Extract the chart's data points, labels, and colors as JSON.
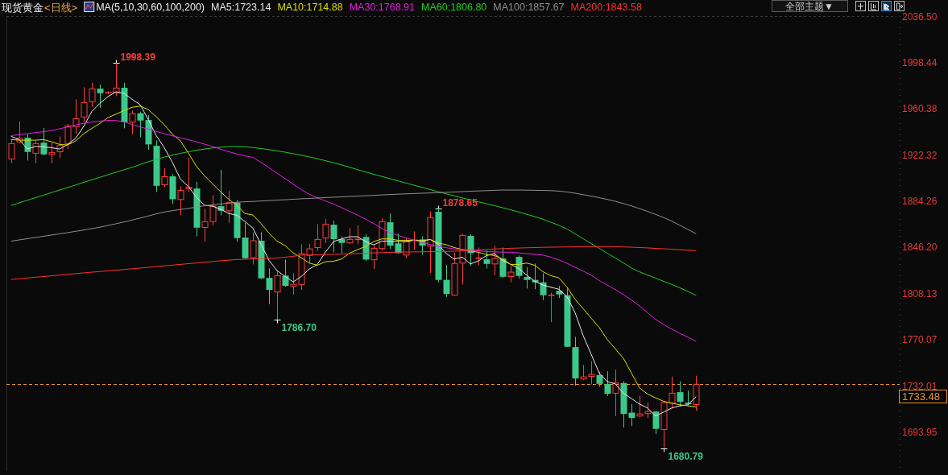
{
  "chart_data": {
    "type": "candlestick",
    "title": "现货黄金",
    "subtitle": "<日线>",
    "legend_title": "MA(5,10,30,60,100,200)",
    "legend": "top",
    "tick_labels": "y",
    "categories": [
      null,
      null,
      null,
      null,
      null,
      null,
      null,
      null,
      null,
      null,
      null,
      null,
      null,
      null,
      null,
      null,
      null,
      null,
      null,
      null,
      null,
      null,
      null,
      null,
      null,
      null,
      null,
      null,
      null,
      null,
      null,
      null,
      null,
      null,
      null,
      null,
      null,
      null,
      null,
      null,
      null,
      null,
      null,
      null,
      null,
      null,
      null,
      null,
      null,
      null,
      null,
      null,
      null,
      null,
      null,
      null,
      null,
      null,
      null,
      null,
      null,
      null,
      null,
      null,
      null,
      null,
      null,
      null,
      null,
      null,
      null,
      null,
      null,
      null,
      null,
      null,
      null,
      null,
      null,
      null,
      null,
      null,
      null,
      null,
      null,
      null
    ],
    "ohlc": [
      [
        1919.2,
        1935.2,
        1915.7,
        1931.9
      ],
      [
        1933.2,
        1950.2,
        1932.5,
        1936.3
      ],
      [
        1936.7,
        1939.6,
        1917.9,
        1925.0
      ],
      [
        1923.9,
        1934.1,
        1915.7,
        1931.9
      ],
      [
        1932.7,
        1944.7,
        1922.3,
        1923.0
      ],
      [
        1923.0,
        1932.9,
        1915.7,
        1924.6
      ],
      [
        1925.2,
        1937.8,
        1920.1,
        1930.3
      ],
      [
        1931.9,
        1948.0,
        1927.4,
        1946.5
      ],
      [
        1945.8,
        1968.4,
        1940.0,
        1952.4
      ],
      [
        1953.8,
        1978.3,
        1949.6,
        1965.7
      ],
      [
        1966.4,
        1982.1,
        1962.2,
        1977.0
      ],
      [
        1977.2,
        1980.5,
        1961.3,
        1973.4
      ],
      [
        1973.7,
        1975.0,
        1972.8,
        1974.1
      ],
      [
        1973.7,
        1998.39,
        1971.0,
        1977.7
      ],
      [
        1977.9,
        1982.1,
        1944.5,
        1949.6
      ],
      [
        1949.6,
        1959.1,
        1939.6,
        1956.6
      ],
      [
        1956.9,
        1958.2,
        1937.0,
        1950.9
      ],
      [
        1951.3,
        1955.5,
        1926.8,
        1931.2
      ],
      [
        1930.1,
        1934.5,
        1892.0,
        1897.1
      ],
      [
        1898.0,
        1911.5,
        1896.0,
        1904.6
      ],
      [
        1904.9,
        1906.9,
        1882.1,
        1886.0
      ],
      [
        1885.8,
        1896.7,
        1872.8,
        1893.3
      ],
      [
        1894.7,
        1920.4,
        1892.0,
        1896.0
      ],
      [
        1894.9,
        1900.4,
        1855.5,
        1862.6
      ],
      [
        1862.8,
        1878.3,
        1851.1,
        1867.4
      ],
      [
        1867.7,
        1889.4,
        1864.4,
        1880.3
      ],
      [
        1880.3,
        1910.2,
        1872.8,
        1876.5
      ],
      [
        1876.5,
        1893.1,
        1866.6,
        1883.2
      ],
      [
        1883.2,
        1885.4,
        1851.1,
        1854.0
      ],
      [
        1854.4,
        1866.6,
        1836.7,
        1837.4
      ],
      [
        1837.8,
        1858.8,
        1832.3,
        1851.8
      ],
      [
        1851.8,
        1858.8,
        1820.2,
        1820.8
      ],
      [
        1821.2,
        1829.0,
        1799.5,
        1811.3
      ],
      [
        1809.5,
        1827.4,
        1786.7,
        1823.0
      ],
      [
        1823.0,
        1836.3,
        1813.9,
        1814.6
      ],
      [
        1814.4,
        1825.0,
        1807.5,
        1815.9
      ],
      [
        1815.7,
        1848.9,
        1811.3,
        1841.1
      ],
      [
        1839.8,
        1849.3,
        1833.4,
        1845.1
      ],
      [
        1846.2,
        1865.5,
        1843.4,
        1852.9
      ],
      [
        1854.0,
        1869.9,
        1850.0,
        1865.5
      ],
      [
        1865.0,
        1868.4,
        1842.3,
        1853.1
      ],
      [
        1853.1,
        1855.5,
        1841.6,
        1850.0
      ],
      [
        1850.0,
        1862.2,
        1849.3,
        1852.9
      ],
      [
        1852.7,
        1864.4,
        1848.9,
        1853.1
      ],
      [
        1854.9,
        1857.3,
        1835.2,
        1836.3
      ],
      [
        1836.1,
        1847.8,
        1828.5,
        1845.6
      ],
      [
        1845.4,
        1870.4,
        1843.8,
        1867.5
      ],
      [
        1867.0,
        1874.3,
        1845.1,
        1847.8
      ],
      [
        1849.6,
        1857.7,
        1841.1,
        1841.6
      ],
      [
        1840.0,
        1854.4,
        1837.4,
        1851.1
      ],
      [
        1852.0,
        1859.5,
        1844.5,
        1852.7
      ],
      [
        1852.9,
        1855.5,
        1840.5,
        1847.8
      ],
      [
        1847.3,
        1875.9,
        1825.2,
        1871.0
      ],
      [
        1875.7,
        1878.65,
        1817.5,
        1819.5
      ],
      [
        1819.5,
        1831.9,
        1805.5,
        1807.9
      ],
      [
        1806.9,
        1842.0,
        1806.4,
        1833.0
      ],
      [
        1833.4,
        1857.7,
        1815.7,
        1856.2
      ],
      [
        1855.8,
        1857.1,
        1831.2,
        1841.6
      ],
      [
        1837.2,
        1846.2,
        1831.6,
        1837.8
      ],
      [
        1836.5,
        1843.8,
        1829.0,
        1832.7
      ],
      [
        1832.7,
        1847.8,
        1823.4,
        1837.2
      ],
      [
        1837.2,
        1846.2,
        1821.2,
        1822.1
      ],
      [
        1822.3,
        1831.2,
        1817.5,
        1825.9
      ],
      [
        1838.5,
        1839.6,
        1820.6,
        1822.8
      ],
      [
        1821.9,
        1830.1,
        1812.4,
        1819.5
      ],
      [
        1819.5,
        1833.0,
        1811.9,
        1817.5
      ],
      [
        1817.5,
        1825.0,
        1802.9,
        1806.9
      ],
      [
        1806.6,
        1809.1,
        1784.7,
        1807.1
      ],
      [
        1810.6,
        1814.6,
        1804.6,
        1807.5
      ],
      [
        1806.9,
        1812.4,
        1764.4,
        1764.4
      ],
      [
        1764.1,
        1772.6,
        1732.3,
        1738.3
      ],
      [
        1737.8,
        1749.3,
        1737.1,
        1739.6
      ],
      [
        1740.0,
        1752.6,
        1733.4,
        1741.6
      ],
      [
        1741.1,
        1743.8,
        1731.6,
        1733.8
      ],
      [
        1733.8,
        1744.2,
        1723.9,
        1725.6
      ],
      [
        1726.1,
        1745.6,
        1707.3,
        1734.5
      ],
      [
        1734.5,
        1736.0,
        1697.8,
        1709.0
      ],
      [
        1710.1,
        1717.2,
        1699.1,
        1705.7
      ],
      [
        1707.3,
        1723.9,
        1706.6,
        1709.0
      ],
      [
        1709.3,
        1718.3,
        1705.5,
        1711.0
      ],
      [
        1711.0,
        1711.7,
        1692.5,
        1696.7
      ],
      [
        1696.2,
        1719.9,
        1680.79,
        1718.3
      ],
      [
        1717.9,
        1739.8,
        1713.5,
        1726.1
      ],
      [
        1727.0,
        1736.0,
        1715.0,
        1719.0
      ],
      [
        1718.3,
        1728.3,
        1716.1,
        1717.0
      ],
      [
        1716.8,
        1740.5,
        1711.7,
        1733.48
      ]
    ],
    "colors": [
      "#ff3b3b",
      "#ff3b3b",
      "#3cc88a",
      "#ff3b3b",
      "#3cc88a",
      "#ff3b3b",
      "#ff3b3b",
      "#ff3b3b",
      "#ff3b3b",
      "#ff3b3b",
      "#ff3b3b",
      "#3cc88a",
      "#ff3b3b",
      "#ff3b3b",
      "#3cc88a",
      "#ff3b3b",
      "#3cc88a",
      "#3cc88a",
      "#3cc88a",
      "#ff3b3b",
      "#3cc88a",
      "#ff3b3b",
      "#ff3b3b",
      "#3cc88a",
      "#ff3b3b",
      "#ff3b3b",
      "#3cc88a",
      "#ff3b3b",
      "#3cc88a",
      "#3cc88a",
      "#ff3b3b",
      "#3cc88a",
      "#3cc88a",
      "#ff3b3b",
      "#3cc88a",
      "#ff3b3b",
      "#ff3b3b",
      "#ff3b3b",
      "#ff3b3b",
      "#ff3b3b",
      "#3cc88a",
      "#3cc88a",
      "#ff3b3b",
      "#ff3b3b",
      "#3cc88a",
      "#ff3b3b",
      "#ff3b3b",
      "#3cc88a",
      "#3cc88a",
      "#ff3b3b",
      "#ff3b3b",
      "#3cc88a",
      "#ff3b3b",
      "#3cc88a",
      "#3cc88a",
      "#ff3b3b",
      "#ff3b3b",
      "#3cc88a",
      "#ff3b3b",
      "#3cc88a",
      "#ff3b3b",
      "#3cc88a",
      "#ff3b3b",
      "#3cc88a",
      "#3cc88a",
      "#3cc88a",
      "#3cc88a",
      "#ff3b3b",
      "#3cc88a",
      "#3cc88a",
      "#3cc88a",
      "#ff3b3b",
      "#ff3b3b",
      "#3cc88a",
      "#3cc88a",
      "#ff3b3b",
      "#3cc88a",
      "#3cc88a",
      "#ff3b3b",
      "#ff3b3b",
      "#3cc88a",
      "#ff3b3b",
      "#ff3b3b",
      "#3cc88a",
      "#3cc88a",
      "#ff3b3b"
    ],
    "series": [
      {
        "name": "MA5:1723.14",
        "type": "line",
        "color": "#e8e8e8",
        "values": [
          1937.8,
          1935.2,
          1927.4,
          1929.6,
          1929.2,
          1928.5,
          1927.4,
          1931.2,
          1936.3,
          1946.2,
          1958.4,
          1965.1,
          1970.6,
          1974.6,
          1973.3,
          1968.4,
          1964.0,
          1951.8,
          1938.5,
          1928.5,
          1916.4,
          1902.6,
          1896.4,
          1887.6,
          1881.0,
          1880.3,
          1877.7,
          1874.3,
          1872.8,
          1867.7,
          1862.2,
          1848.9,
          1835.6,
          1827.2,
          1822.3,
          1817.9,
          1822.3,
          1828.5,
          1832.3,
          1842.3,
          1851.1,
          1853.3,
          1855.1,
          1855.1,
          1851.1,
          1848.4,
          1851.5,
          1851.5,
          1851.1,
          1851.1,
          1852.2,
          1851.5,
          1852.9,
          1849.0,
          1841.2,
          1836.7,
          1838.3,
          1832.7,
          1835.2,
          1839.6,
          1841.2,
          1835.6,
          1832.3,
          1829.0,
          1823.4,
          1818.4,
          1815.3,
          1813.5,
          1811.8,
          1805.7,
          1792.5,
          1773.7,
          1758.2,
          1742.7,
          1735.6,
          1733.8,
          1726.1,
          1721.7,
          1717.2,
          1713.9,
          1707.3,
          1710.6,
          1713.9,
          1715.7,
          1716.6,
          1723.14
        ]
      },
      {
        "name": "MA10:1714.88",
        "type": "line",
        "color": "#dede00",
        "values": [
          1935.2,
          1934.7,
          1934.7,
          1934.7,
          1935.2,
          1933.4,
          1931.2,
          1930.8,
          1934.1,
          1940.0,
          1944.5,
          1948.5,
          1953.3,
          1956.2,
          1959.1,
          1961.8,
          1962.8,
          1960.0,
          1954.0,
          1947.4,
          1939.6,
          1934.1,
          1924.1,
          1913.0,
          1905.3,
          1898.7,
          1892.1,
          1886.0,
          1881.0,
          1874.3,
          1873.0,
          1866.0,
          1858.0,
          1851.5,
          1847.8,
          1841.8,
          1837.8,
          1833.4,
          1831.6,
          1834.5,
          1834.9,
          1836.7,
          1841.6,
          1844.5,
          1847.1,
          1851.1,
          1853.3,
          1853.3,
          1852.2,
          1852.2,
          1852.2,
          1851.8,
          1852.9,
          1850.0,
          1848.5,
          1846.2,
          1844.5,
          1843.4,
          1842.3,
          1840.5,
          1839.6,
          1836.7,
          1832.3,
          1832.3,
          1833.4,
          1831.6,
          1826.3,
          1823.0,
          1821.2,
          1813.5,
          1803.5,
          1795.8,
          1788.0,
          1780.3,
          1770.3,
          1762.6,
          1754.9,
          1742.7,
          1730.5,
          1725.4,
          1722.3,
          1719.4,
          1717.9,
          1716.6,
          1715.7,
          1714.88
        ]
      },
      {
        "name": "MA30:1768.91",
        "type": "line",
        "color": "#e020e0",
        "values": [
          1938.5,
          1939.3,
          1940.1,
          1940.9,
          1941.7,
          1942.6,
          1944.1,
          1945.7,
          1947.3,
          1948.6,
          1949.6,
          1950.4,
          1951.0,
          1950.9,
          1949.8,
          1947.6,
          1945.6,
          1943.9,
          1941.9,
          1940.0,
          1938.3,
          1936.7,
          1935.1,
          1933.3,
          1931.4,
          1929.5,
          1927.3,
          1925.2,
          1923.4,
          1921.8,
          1920.5,
          1916.5,
          1912.0,
          1907.5,
          1903.0,
          1898.5,
          1894.0,
          1890.2,
          1887.2,
          1884.6,
          1882.1,
          1879.1,
          1876.0,
          1873.0,
          1869.5,
          1866.0,
          1862.0,
          1858.5,
          1856.3,
          1854.2,
          1852.2,
          1850.4,
          1848.8,
          1847.3,
          1846.0,
          1845.1,
          1844.5,
          1844.0,
          1843.5,
          1842.9,
          1842.6,
          1842.4,
          1842.3,
          1841.8,
          1841.2,
          1840.6,
          1840.0,
          1838.3,
          1836.0,
          1833.2,
          1830.0,
          1826.8,
          1823.4,
          1819.0,
          1815.3,
          1811.5,
          1807.5,
          1803.0,
          1798.0,
          1792.5,
          1787.0,
          1782.6,
          1779.0,
          1775.5,
          1772.3,
          1768.91
        ]
      },
      {
        "name": "MA60:1806.80",
        "type": "line",
        "color": "#22cc22",
        "values": [
          1881.0,
          1883.1,
          1885.2,
          1887.3,
          1889.4,
          1891.5,
          1893.6,
          1895.7,
          1897.8,
          1899.9,
          1902.0,
          1904.1,
          1906.2,
          1908.3,
          1910.3,
          1912.3,
          1914.6,
          1916.9,
          1918.9,
          1920.8,
          1922.4,
          1923.9,
          1925.2,
          1926.4,
          1927.4,
          1928.3,
          1929.0,
          1929.4,
          1929.5,
          1929.3,
          1928.6,
          1927.8,
          1926.9,
          1925.9,
          1924.8,
          1923.6,
          1922.3,
          1920.9,
          1919.4,
          1917.8,
          1916.1,
          1914.3,
          1912.4,
          1910.4,
          1908.5,
          1906.6,
          1904.8,
          1903.0,
          1901.2,
          1899.4,
          1897.6,
          1895.8,
          1894.0,
          1892.2,
          1890.5,
          1888.8,
          1887.1,
          1885.5,
          1883.9,
          1882.3,
          1880.7,
          1879.0,
          1877.3,
          1875.5,
          1873.6,
          1871.7,
          1869.6,
          1867.0,
          1864.5,
          1861.5,
          1857.5,
          1853.5,
          1849.5,
          1845.5,
          1841.5,
          1837.5,
          1833.5,
          1829.3,
          1826.2,
          1823.5,
          1821.0,
          1818.3,
          1815.8,
          1813.0,
          1810.0,
          1806.8
        ]
      },
      {
        "name": "MA100:1857.67",
        "type": "line",
        "color": "#8e8e8e",
        "values": [
          1851.5,
          1852.5,
          1853.5,
          1854.5,
          1855.5,
          1856.5,
          1857.5,
          1858.5,
          1859.6,
          1860.6,
          1861.8,
          1863.0,
          1864.4,
          1865.8,
          1867.3,
          1868.9,
          1870.5,
          1872.2,
          1874.0,
          1875.5,
          1876.6,
          1877.6,
          1878.5,
          1879.6,
          1880.6,
          1881.4,
          1882.1,
          1882.8,
          1883.5,
          1883.9,
          1884.2,
          1884.6,
          1884.9,
          1885.3,
          1885.6,
          1886.0,
          1886.4,
          1886.7,
          1887.0,
          1887.4,
          1887.7,
          1888.0,
          1888.3,
          1888.6,
          1888.9,
          1889.2,
          1889.6,
          1889.9,
          1890.2,
          1890.5,
          1890.7,
          1891.0,
          1891.2,
          1891.5,
          1891.7,
          1892.0,
          1892.3,
          1892.6,
          1892.9,
          1893.1,
          1893.4,
          1893.6,
          1893.6,
          1893.6,
          1893.5,
          1893.4,
          1893.3,
          1893.1,
          1892.7,
          1892.0,
          1891.0,
          1889.8,
          1888.6,
          1887.3,
          1885.9,
          1884.3,
          1882.5,
          1880.5,
          1878.3,
          1876.0,
          1873.5,
          1870.9,
          1868.0,
          1864.6,
          1861.2,
          1857.67
        ]
      },
      {
        "name": "MA200:1843.58",
        "type": "line",
        "color": "#ff3030",
        "values": [
          1819.9,
          1820.5,
          1821.1,
          1821.7,
          1822.3,
          1822.9,
          1823.5,
          1824.1,
          1824.7,
          1825.3,
          1825.9,
          1826.4,
          1827.0,
          1827.5,
          1828.1,
          1828.7,
          1829.3,
          1829.9,
          1830.5,
          1831.1,
          1831.7,
          1832.3,
          1832.9,
          1833.5,
          1834.1,
          1834.7,
          1835.3,
          1835.8,
          1836.3,
          1836.5,
          1836.8,
          1837.0,
          1837.3,
          1837.6,
          1838.2,
          1839.0,
          1840.0,
          1840.1,
          1840.2,
          1840.4,
          1840.5,
          1840.8,
          1841.0,
          1841.3,
          1841.5,
          1841.8,
          1842.0,
          1842.3,
          1842.4,
          1842.5,
          1842.6,
          1842.7,
          1842.8,
          1842.9,
          1843.0,
          1843.2,
          1843.6,
          1844.0,
          1844.3,
          1844.6,
          1845.0,
          1845.3,
          1845.6,
          1845.8,
          1846.0,
          1846.2,
          1846.4,
          1846.5,
          1846.6,
          1846.7,
          1846.8,
          1846.9,
          1846.9,
          1847.0,
          1847.0,
          1846.9,
          1846.7,
          1846.5,
          1846.2,
          1845.9,
          1845.5,
          1845.2,
          1844.8,
          1844.4,
          1844.0,
          1843.58
        ]
      }
    ],
    "ylim": [
      1662,
      2037
    ],
    "yticks": [
      {
        "value": 2036.5,
        "label": "2036.50"
      },
      {
        "value": 1998.44,
        "label": "1998.44"
      },
      {
        "value": 1960.38,
        "label": "1960.38"
      },
      {
        "value": 1922.32,
        "label": "1922.32"
      },
      {
        "value": 1884.26,
        "label": "1884.26"
      },
      {
        "value": 1846.2,
        "label": "1846.20"
      },
      {
        "value": 1808.13,
        "label": "1808.13"
      },
      {
        "value": 1770.07,
        "label": "1770.07"
      },
      {
        "value": 1732.01,
        "label": "1732.01"
      },
      {
        "value": 1693.95,
        "label": "1693.95"
      }
    ],
    "ref_lines": [
      {
        "axis": "y",
        "value": 1733.48,
        "label": "1733.48",
        "color": "#e8952c",
        "line_style": "dashed"
      }
    ],
    "annotations": [
      "1998.39",
      "1878.65",
      "1786.70",
      "1680.79",
      "全部主题▼"
    ]
  }
}
